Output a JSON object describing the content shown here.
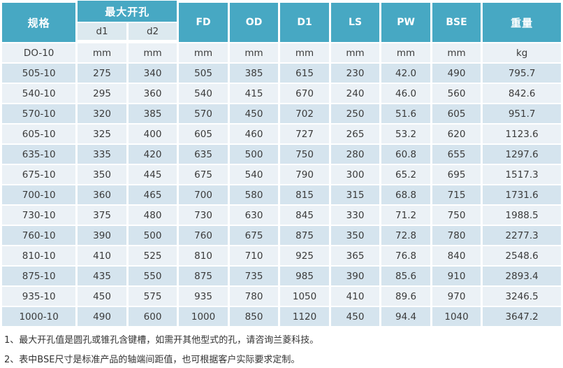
{
  "table": {
    "header": {
      "spec_label": "规格",
      "group_label": "最大开孔",
      "sub": [
        "d1",
        "d2"
      ],
      "cols": [
        "FD",
        "OD",
        "D1",
        "LS",
        "PW",
        "BSE"
      ],
      "weight_label": "重量"
    },
    "unit_row": [
      "DO-10",
      "mm",
      "mm",
      "mm",
      "mm",
      "mm",
      "mm",
      "mm",
      "mm",
      "kg"
    ],
    "rows": [
      [
        "505-10",
        "275",
        "340",
        "505",
        "385",
        "615",
        "230",
        "42.0",
        "490",
        "795.7"
      ],
      [
        "540-10",
        "295",
        "360",
        "540",
        "415",
        "670",
        "240",
        "46.0",
        "560",
        "842.6"
      ],
      [
        "570-10",
        "320",
        "385",
        "570",
        "450",
        "702",
        "250",
        "51.6",
        "605",
        "951.7"
      ],
      [
        "605-10",
        "325",
        "400",
        "605",
        "460",
        "727",
        "265",
        "53.2",
        "620",
        "1123.6"
      ],
      [
        "635-10",
        "335",
        "420",
        "635",
        "500",
        "750",
        "280",
        "60.8",
        "655",
        "1297.6"
      ],
      [
        "675-10",
        "350",
        "445",
        "675",
        "540",
        "790",
        "300",
        "65.2",
        "695",
        "1517.3"
      ],
      [
        "700-10",
        "360",
        "465",
        "700",
        "580",
        "815",
        "315",
        "68.8",
        "715",
        "1731.6"
      ],
      [
        "730-10",
        "375",
        "480",
        "730",
        "630",
        "845",
        "330",
        "71.2",
        "750",
        "1988.5"
      ],
      [
        "760-10",
        "390",
        "500",
        "760",
        "675",
        "875",
        "350",
        "72.8",
        "780",
        "2277.3"
      ],
      [
        "810-10",
        "410",
        "525",
        "810",
        "710",
        "925",
        "365",
        "76.8",
        "840",
        "2548.6"
      ],
      [
        "875-10",
        "435",
        "550",
        "875",
        "735",
        "985",
        "390",
        "85.6",
        "910",
        "2893.4"
      ],
      [
        "935-10",
        "450",
        "575",
        "935",
        "780",
        "1050",
        "410",
        "89.6",
        "970",
        "3246.5"
      ],
      [
        "1000-10",
        "490",
        "600",
        "1000",
        "850",
        "1120",
        "450",
        "94.4",
        "1040",
        "3647.2"
      ]
    ]
  },
  "notes": [
    "1、最大开孔值是圆孔或锥孔含键槽，如需开其他型式的孔，请咨询兰菱科技。",
    "2、表中BSE尺寸是标准产品的轴端间距值，也可根据客户实际要求定制。"
  ],
  "colors": {
    "header_teal": "#47a8c3",
    "subheader_bg": "#dce9ef",
    "row_light": "#ebf1f6",
    "row_dark": "#d5e4ee"
  }
}
